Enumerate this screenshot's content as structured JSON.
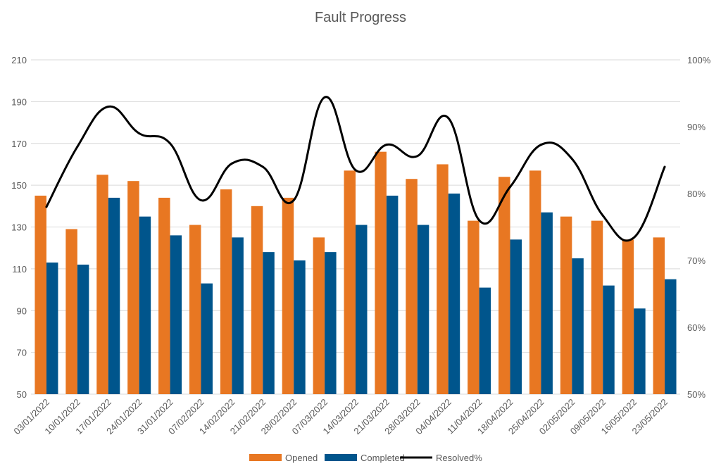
{
  "chart_data": {
    "type": "bar",
    "title": "Fault Progress",
    "categories": [
      "03/01/2022",
      "10/01/2022",
      "17/01/2022",
      "24/01/2022",
      "31/01/2022",
      "07/02/2022",
      "14/02/2022",
      "21/02/2022",
      "28/02/2022",
      "07/03/2022",
      "14/03/2022",
      "21/03/2022",
      "28/03/2022",
      "04/04/2022",
      "11/04/2022",
      "18/04/2022",
      "25/04/2022",
      "02/05/2022",
      "09/05/2022",
      "16/05/2022",
      "23/05/2022"
    ],
    "series": [
      {
        "name": "Opened",
        "type": "bar",
        "axis": "left",
        "color": "#e87722",
        "values": [
          145,
          129,
          155,
          152,
          144,
          131,
          148,
          140,
          144,
          125,
          157,
          166,
          153,
          160,
          133,
          154,
          157,
          135,
          133,
          124,
          125
        ]
      },
      {
        "name": "Completed",
        "type": "bar",
        "axis": "left",
        "color": "#00558c",
        "values": [
          113,
          112,
          144,
          135,
          126,
          103,
          125,
          118,
          114,
          118,
          131,
          145,
          131,
          146,
          101,
          124,
          137,
          115,
          102,
          91,
          105
        ]
      },
      {
        "name": "Resolved%",
        "type": "line",
        "smooth": true,
        "axis": "right",
        "color": "#000000",
        "values": [
          0.78,
          0.87,
          0.93,
          0.89,
          0.875,
          0.79,
          0.845,
          0.84,
          0.79,
          0.944,
          0.835,
          0.873,
          0.856,
          0.913,
          0.76,
          0.81,
          0.873,
          0.852,
          0.767,
          0.734,
          0.84
        ]
      }
    ],
    "y_left": {
      "ylim": [
        50,
        210
      ],
      "ticks": [
        "50",
        "70",
        "90",
        "110",
        "130",
        "150",
        "170",
        "190",
        "210"
      ]
    },
    "y_right": {
      "ylim": [
        0.5,
        1.0
      ],
      "ticks": [
        "50%",
        "60%",
        "70%",
        "80%",
        "90%",
        "100%"
      ]
    },
    "grid": true,
    "legend": "bottom"
  }
}
